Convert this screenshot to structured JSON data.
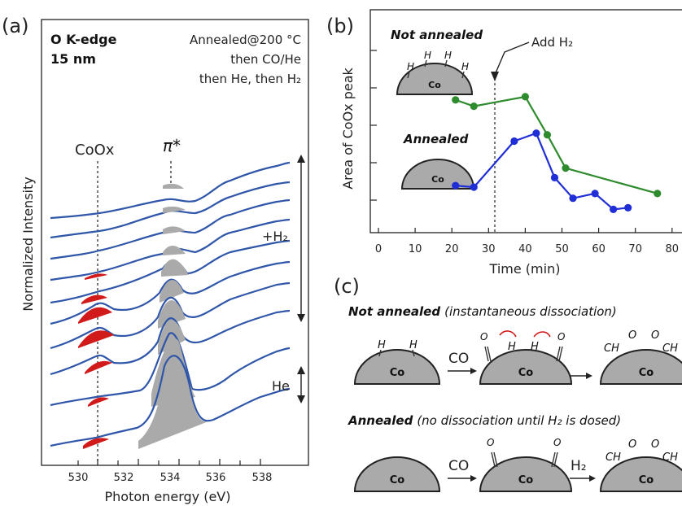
{
  "panel_a": {
    "label": "(a)",
    "title_line1": "O K-edge",
    "title_line2": "15 nm",
    "cond_line1": "Annealed@200 °C",
    "cond_line2": "then CO/He",
    "cond_line3": "then He, then H₂",
    "peak_label_coox": "CoOx",
    "peak_label_pi": "π*",
    "ylabel": "Normalized Intensity",
    "xlabel": "Photon energy (eV)",
    "xticks": [
      "530",
      "532",
      "534",
      "536",
      "538"
    ],
    "h2_label": "+H₂",
    "he_label": "He"
  },
  "panel_b": {
    "label": "(b)",
    "not_annealed": "Not annealed",
    "annealed": "Annealed",
    "add_h2": "Add H₂",
    "co_label": "Co",
    "h_label": "H",
    "ylabel": "Area of CoOx peak",
    "xlabel": "Time (min)",
    "xticks": [
      "0",
      "10",
      "20",
      "30",
      "40",
      "50",
      "60",
      "70",
      "80"
    ]
  },
  "panel_c": {
    "label": "(c)",
    "row1_bold": "Not annealed",
    "row1_rest": "(instantaneous dissociation)",
    "row2_bold": "Annealed",
    "row2_rest": "(no dissociation until H₂ is dosed)",
    "co_arrow": "CO",
    "h2_arrow": "H₂",
    "co_label": "Co",
    "h_label": "H",
    "ch_label": "CH",
    "o_label": "O"
  },
  "chart_data": [
    {
      "type": "line",
      "panel": "b",
      "xlabel": "Time (min)",
      "ylabel": "Area of CoOx peak",
      "xlim": [
        -5,
        82
      ],
      "series": [
        {
          "name": "Not annealed",
          "color": "#2e8b2e",
          "x": [
            21,
            26,
            40,
            46,
            51,
            76
          ],
          "y": [
            0.76,
            0.72,
            0.78,
            0.54,
            0.33,
            0.17
          ]
        },
        {
          "name": "Annealed",
          "color": "#1f2ed6",
          "x": [
            21,
            26,
            37,
            43,
            48,
            53,
            59,
            64,
            68
          ],
          "y": [
            0.22,
            0.21,
            0.5,
            0.55,
            0.27,
            0.14,
            0.17,
            0.07,
            0.08
          ]
        }
      ],
      "annotation": {
        "x": 32,
        "text": "Add H₂"
      }
    },
    {
      "type": "line",
      "panel": "a",
      "xlabel": "Photon energy (eV)",
      "ylabel": "Normalized Intensity",
      "xlim": [
        528.5,
        539.2
      ],
      "peaks": {
        "CoOx": 530.8,
        "pi_star": 533.8
      }
    }
  ]
}
